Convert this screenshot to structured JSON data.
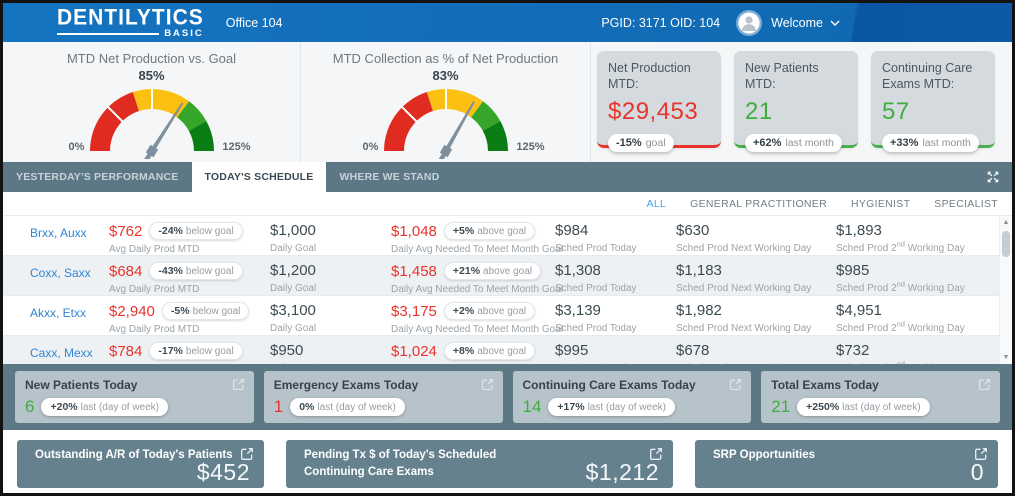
{
  "header": {
    "logo_main": "DENTILYTICS",
    "logo_sub": "BASIC",
    "office": "Office 104",
    "ids": "PGID: 3171 OID: 104",
    "welcome": "Welcome"
  },
  "gauges": {
    "max": 125,
    "needle_color": "#7e909d",
    "segments": [
      {
        "from": 0,
        "to": 50,
        "color": "#e02b20"
      },
      {
        "from": 50,
        "to": 88,
        "color": "#fbc011"
      },
      {
        "from": 88,
        "to": 105,
        "color": "#36a62b"
      },
      {
        "from": 105,
        "to": 125,
        "color": "#0a7d15"
      }
    ],
    "ticks": [
      31.25,
      62.5
    ],
    "items": [
      {
        "title": "MTD Net Production vs. Goal",
        "value": 85,
        "value_label": "85%",
        "min_label": "0%",
        "max_label": "125%"
      },
      {
        "title": "MTD Collection as % of Net Production",
        "value": 83,
        "value_label": "83%",
        "min_label": "0%",
        "max_label": "125%"
      }
    ]
  },
  "kpi_cards": [
    {
      "label": "Net Production MTD:",
      "value": "$29,453",
      "color": "#e8342c",
      "accent": "#e8342c",
      "badge_pct": "-15%",
      "badge_sfx": "goal"
    },
    {
      "label": "New Patients MTD:",
      "value": "21",
      "color": "#3fae3f",
      "accent": "#4caf50",
      "badge_pct": "+62%",
      "badge_sfx": "last month"
    },
    {
      "label": "Continuing Care Exams MTD:",
      "value": "57",
      "color": "#3fae3f",
      "accent": "#4caf50",
      "badge_pct": "+33%",
      "badge_sfx": "last month"
    }
  ],
  "tabs": [
    {
      "label": "YESTERDAY'S PERFORMANCE",
      "active": false
    },
    {
      "label": "TODAY'S SCHEDULE",
      "active": true
    },
    {
      "label": "WHERE WE STAND",
      "active": false
    }
  ],
  "filters": [
    {
      "label": "ALL",
      "active": true
    },
    {
      "label": "GENERAL PRACTITIONER",
      "active": false
    },
    {
      "label": "HYGIENIST",
      "active": false
    },
    {
      "label": "SPECIALIST",
      "active": false
    }
  ],
  "table": {
    "columns": [
      "Avg Daily Prod MTD",
      "Daily Goal",
      "Daily Avg Needed To Meet Month Goal",
      "Sched Prod Today",
      "Sched Prod Next Working Day"
    ],
    "column6": {
      "pre": "Sched Prod 2",
      "sup": "nd",
      "post": " Working Day"
    },
    "rows": [
      {
        "name": "Brxx, Auxx",
        "avg": "$762",
        "avg_pct": "-24%",
        "avg_sfx": "below goal",
        "goal": "$1,000",
        "needed": "$1,048",
        "needed_pct": "+5%",
        "needed_sfx": "above goal",
        "today": "$984",
        "next_day": "$630",
        "second_day": "$1,893"
      },
      {
        "name": "Coxx, Saxx",
        "avg": "$684",
        "avg_pct": "-43%",
        "avg_sfx": "below goal",
        "goal": "$1,200",
        "needed": "$1,458",
        "needed_pct": "+21%",
        "needed_sfx": "above goal",
        "today": "$1,308",
        "next_day": "$1,183",
        "second_day": "$985"
      },
      {
        "name": "Akxx, Etxx",
        "avg": "$2,940",
        "avg_pct": "-5%",
        "avg_sfx": "below goal",
        "goal": "$3,100",
        "needed": "$3,175",
        "needed_pct": "+2%",
        "needed_sfx": "above goal",
        "today": "$3,139",
        "next_day": "$1,982",
        "second_day": "$4,951"
      },
      {
        "name": "Caxx, Mexx",
        "avg": "$784",
        "avg_pct": "-17%",
        "avg_sfx": "below goal",
        "goal": "$950",
        "needed": "$1,024",
        "needed_pct": "+8%",
        "needed_sfx": "above goal",
        "today": "$995",
        "next_day": "$678",
        "second_day": "$732"
      }
    ]
  },
  "stat_cards": [
    {
      "title": "New Patients Today",
      "value": "6",
      "color": "#3fae3f",
      "badge_pct": "+20%",
      "badge_sfx": "last (day of week)"
    },
    {
      "title": "Emergency Exams Today",
      "value": "1",
      "color": "#e8342c",
      "badge_pct": "0%",
      "badge_sfx": "last (day of week)"
    },
    {
      "title": "Continuing Care Exams Today",
      "value": "14",
      "color": "#3fae3f",
      "badge_pct": "+17%",
      "badge_sfx": "last (day of week)"
    },
    {
      "title": "Total Exams Today",
      "value": "21",
      "color": "#3fae3f",
      "badge_pct": "+250%",
      "badge_sfx": "last (day of week)"
    }
  ],
  "bottom_cards": [
    {
      "title": "Outstanding A/R of Today's Patients",
      "value": "$452"
    },
    {
      "title": "Pending Tx $ of Today's Scheduled Continuing Care Exams",
      "value": "$1,212"
    },
    {
      "title": "SRP Opportunities",
      "value": "0"
    }
  ]
}
